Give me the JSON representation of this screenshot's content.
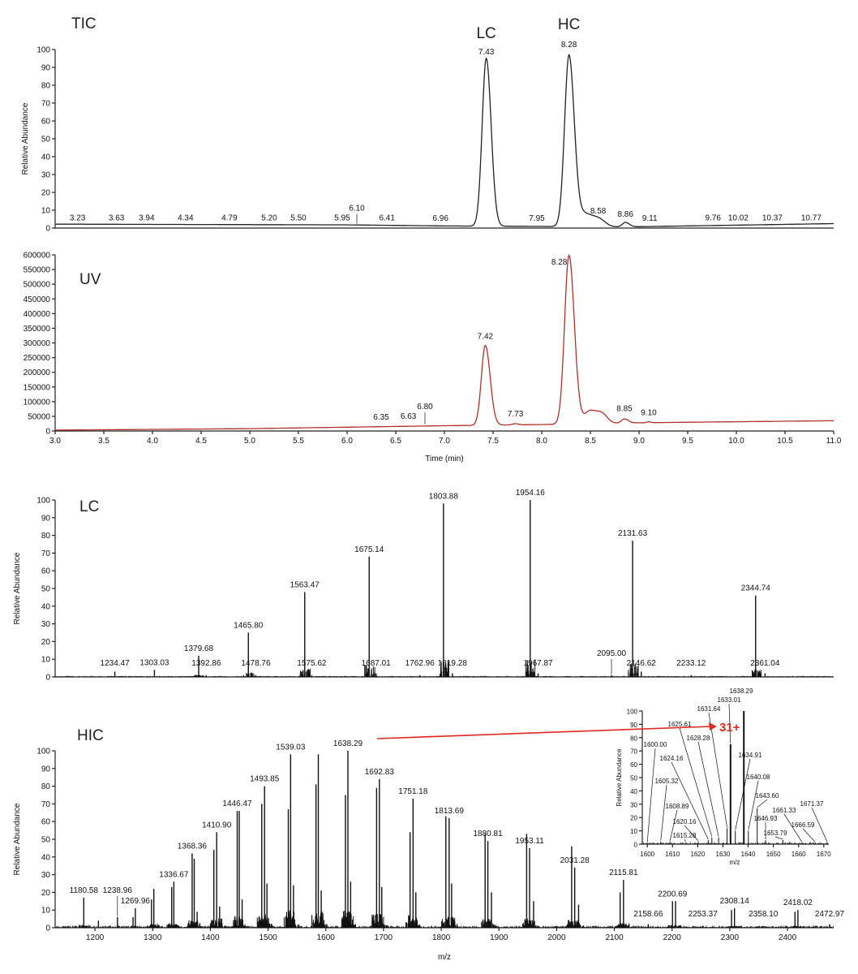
{
  "colors": {
    "tic_trace": "#222222",
    "uv_trace": "#b0302a",
    "spectrum": "#111111",
    "annotation": "#e0281e"
  },
  "chart_data": [
    {
      "id": "tic",
      "type": "line",
      "panel_label": "TIC",
      "peak_names": [
        {
          "text": "LC",
          "rt": 7.43
        },
        {
          "text": "HC",
          "rt": 8.28
        }
      ],
      "ylabel": "Relative Abundance",
      "xlim": [
        3.0,
        11.0
      ],
      "ylim": [
        0,
        100
      ],
      "yticks": [
        0,
        10,
        20,
        30,
        40,
        50,
        60,
        70,
        80,
        90,
        100
      ],
      "peaks": [
        {
          "rt": 3.23,
          "value": 2,
          "label": "3.23"
        },
        {
          "rt": 3.63,
          "value": 2,
          "label": "3.63"
        },
        {
          "rt": 3.94,
          "value": 2,
          "label": "3.94"
        },
        {
          "rt": 4.34,
          "value": 2,
          "label": "4.34"
        },
        {
          "rt": 4.79,
          "value": 2,
          "label": "4.79"
        },
        {
          "rt": 5.2,
          "value": 2,
          "label": "5.20"
        },
        {
          "rt": 5.5,
          "value": 2,
          "label": "5.50"
        },
        {
          "rt": 5.95,
          "value": 2,
          "label": "5.95"
        },
        {
          "rt": 6.1,
          "value": 2,
          "label": "6.10"
        },
        {
          "rt": 6.41,
          "value": 2,
          "label": "6.41"
        },
        {
          "rt": 6.96,
          "value": 1,
          "label": "6.96"
        },
        {
          "rt": 7.43,
          "value": 95,
          "label": "7.43"
        },
        {
          "rt": 7.95,
          "value": 1,
          "label": "7.95"
        },
        {
          "rt": 8.28,
          "value": 99,
          "label": "8.28"
        },
        {
          "rt": 8.58,
          "value": 6,
          "label": "8.58"
        },
        {
          "rt": 8.86,
          "value": 4,
          "label": "8.86"
        },
        {
          "rt": 9.11,
          "value": 1,
          "label": "9.11"
        },
        {
          "rt": 9.76,
          "value": 2,
          "label": "9.76"
        },
        {
          "rt": 10.02,
          "value": 2,
          "label": "10.02"
        },
        {
          "rt": 10.37,
          "value": 2,
          "label": "10.37"
        },
        {
          "rt": 10.77,
          "value": 2,
          "label": "10.77"
        }
      ]
    },
    {
      "id": "uv",
      "type": "line",
      "panel_label": "UV",
      "xlabel": "Time (min)",
      "xlim": [
        3.0,
        11.0
      ],
      "ylim": [
        0,
        600000
      ],
      "xticks": [
        "3.0",
        "3.5",
        "4.0",
        "4.5",
        "5.0",
        "5.5",
        "6.0",
        "6.5",
        "7.0",
        "7.5",
        "8.0",
        "8.5",
        "9.0",
        "9.5",
        "10.0",
        "10.5",
        "11.0"
      ],
      "yticks": [
        0,
        50000,
        100000,
        150000,
        200000,
        250000,
        300000,
        350000,
        400000,
        450000,
        500000,
        550000,
        600000
      ],
      "peaks": [
        {
          "rt": 6.35,
          "value": 17000,
          "label": "6.35"
        },
        {
          "rt": 6.63,
          "value": 19000,
          "label": "6.63"
        },
        {
          "rt": 6.8,
          "value": 20000,
          "label": "6.80"
        },
        {
          "rt": 7.42,
          "value": 292000,
          "label": "7.42"
        },
        {
          "rt": 7.73,
          "value": 27000,
          "label": "7.73"
        },
        {
          "rt": 8.28,
          "value": 600000,
          "label": "8.28"
        },
        {
          "rt": 8.85,
          "value": 45000,
          "label": "8.85"
        },
        {
          "rt": 9.1,
          "value": 32000,
          "label": "9.10"
        }
      ]
    },
    {
      "id": "lc_spectrum",
      "type": "bar",
      "panel_label": "LC",
      "ylabel": "Relative Abundance",
      "xlim": [
        1131,
        2480
      ],
      "ylim": [
        0,
        100
      ],
      "yticks": [
        0,
        10,
        20,
        30,
        40,
        50,
        60,
        70,
        80,
        90,
        100
      ],
      "peaks": [
        {
          "mz": 1234.47,
          "value": 3,
          "label": "1234.47"
        },
        {
          "mz": 1303.03,
          "value": 4,
          "label": "1303.03"
        },
        {
          "mz": 1379.68,
          "value": 12,
          "label": "1379.68"
        },
        {
          "mz": 1392.86,
          "value": 1,
          "label": "1392.86"
        },
        {
          "mz": 1465.8,
          "value": 25,
          "label": "1465.80"
        },
        {
          "mz": 1478.76,
          "value": 1,
          "label": "1478.76"
        },
        {
          "mz": 1563.47,
          "value": 48,
          "label": "1563.47"
        },
        {
          "mz": 1575.62,
          "value": 1,
          "label": "1575.62"
        },
        {
          "mz": 1675.14,
          "value": 68,
          "label": "1675.14"
        },
        {
          "mz": 1687.01,
          "value": 2,
          "label": "1687.01"
        },
        {
          "mz": 1762.96,
          "value": 1,
          "label": "1762.96"
        },
        {
          "mz": 1803.88,
          "value": 98,
          "label": "1803.88"
        },
        {
          "mz": 1819.28,
          "value": 2,
          "label": "1819.28"
        },
        {
          "mz": 1954.16,
          "value": 100,
          "label": "1954.16"
        },
        {
          "mz": 1967.87,
          "value": 2,
          "label": "1967.87"
        },
        {
          "mz": 2095.0,
          "value": 1,
          "label": "2095.00"
        },
        {
          "mz": 2131.63,
          "value": 77,
          "label": "2131.63"
        },
        {
          "mz": 2146.62,
          "value": 3,
          "label": "2146.62"
        },
        {
          "mz": 2233.12,
          "value": 1,
          "label": "2233.12"
        },
        {
          "mz": 2344.74,
          "value": 46,
          "label": "2344.74"
        },
        {
          "mz": 2361.04,
          "value": 2,
          "label": "2361.04"
        }
      ]
    },
    {
      "id": "hc_spectrum",
      "type": "bar",
      "panel_label": "HIC",
      "xlabel": "m/z",
      "ylabel": "Relative Abundance",
      "xlim": [
        1131,
        2480
      ],
      "ylim": [
        0,
        100
      ],
      "xticks": [
        1200,
        1300,
        1400,
        1500,
        1600,
        1700,
        1800,
        1900,
        2000,
        2100,
        2200,
        2300,
        2400
      ],
      "yticks": [
        0,
        10,
        20,
        30,
        40,
        50,
        60,
        70,
        80,
        90,
        100
      ],
      "peaks": [
        {
          "mz": 1180.58,
          "value": 17,
          "label": "1180.58"
        },
        {
          "mz": 1238.96,
          "value": 6,
          "label": "1238.96"
        },
        {
          "mz": 1269.96,
          "value": 11,
          "label": "1269.96"
        },
        {
          "mz": 1336.67,
          "value": 26,
          "label": "1336.67"
        },
        {
          "mz": 1368.36,
          "value": 42,
          "label": "1368.36"
        },
        {
          "mz": 1410.9,
          "value": 54,
          "label": "1410.90"
        },
        {
          "mz": 1446.47,
          "value": 66,
          "label": "1446.47"
        },
        {
          "mz": 1493.85,
          "value": 80,
          "label": "1493.85"
        },
        {
          "mz": 1539.03,
          "value": 98,
          "label": "1539.03"
        },
        {
          "mz": 1638.29,
          "value": 100,
          "label": "1638.29"
        },
        {
          "mz": 1692.83,
          "value": 84,
          "label": "1692.83"
        },
        {
          "mz": 1751.18,
          "value": 73,
          "label": "1751.18"
        },
        {
          "mz": 1813.69,
          "value": 62,
          "label": "1813.69"
        },
        {
          "mz": 1880.81,
          "value": 49,
          "label": "1880.81"
        },
        {
          "mz": 1953.11,
          "value": 45,
          "label": "1953.11"
        },
        {
          "mz": 2031.28,
          "value": 34,
          "label": "2031.28"
        },
        {
          "mz": 2115.81,
          "value": 27,
          "label": "2115.81"
        },
        {
          "mz": 2158.66,
          "value": 2,
          "label": "2158.66"
        },
        {
          "mz": 2200.69,
          "value": 15,
          "label": "2200.69"
        },
        {
          "mz": 2253.37,
          "value": 1,
          "label": "2253.37"
        },
        {
          "mz": 2308.14,
          "value": 11,
          "label": "2308.14"
        },
        {
          "mz": 2358.1,
          "value": 1,
          "label": "2358.10"
        },
        {
          "mz": 2418.02,
          "value": 10,
          "label": "2418.02"
        },
        {
          "mz": 2472.97,
          "value": 2,
          "label": "2472.97"
        }
      ],
      "unlabeled_peaks": [
        {
          "mz": 1206,
          "value": 4
        },
        {
          "mz": 1266,
          "value": 6
        },
        {
          "mz": 1298,
          "value": 16
        },
        {
          "mz": 1302,
          "value": 22
        },
        {
          "mz": 1333,
          "value": 23
        },
        {
          "mz": 1372,
          "value": 39
        },
        {
          "mz": 1377,
          "value": 9
        },
        {
          "mz": 1406,
          "value": 44
        },
        {
          "mz": 1416,
          "value": 12
        },
        {
          "mz": 1450,
          "value": 66
        },
        {
          "mz": 1455,
          "value": 16
        },
        {
          "mz": 1489,
          "value": 70
        },
        {
          "mz": 1498,
          "value": 25
        },
        {
          "mz": 1535,
          "value": 67
        },
        {
          "mz": 1544,
          "value": 24
        },
        {
          "mz": 1583,
          "value": 81
        },
        {
          "mz": 1587,
          "value": 98
        },
        {
          "mz": 1592,
          "value": 21
        },
        {
          "mz": 1634,
          "value": 75
        },
        {
          "mz": 1643,
          "value": 26
        },
        {
          "mz": 1688,
          "value": 79
        },
        {
          "mz": 1697,
          "value": 23
        },
        {
          "mz": 1746,
          "value": 54
        },
        {
          "mz": 1756,
          "value": 20
        },
        {
          "mz": 1808,
          "value": 63
        },
        {
          "mz": 1818,
          "value": 25
        },
        {
          "mz": 1876,
          "value": 53
        },
        {
          "mz": 1887,
          "value": 20
        },
        {
          "mz": 1948,
          "value": 53
        },
        {
          "mz": 1960,
          "value": 15
        },
        {
          "mz": 2026,
          "value": 46
        },
        {
          "mz": 2038,
          "value": 13
        },
        {
          "mz": 2110,
          "value": 20
        },
        {
          "mz": 2206,
          "value": 15
        },
        {
          "mz": 2303,
          "value": 10
        },
        {
          "mz": 2413,
          "value": 9
        }
      ],
      "annotation": {
        "text": "31+",
        "from_peak": "1638.29"
      }
    },
    {
      "id": "hc_inset",
      "type": "bar",
      "xlabel": "m/z",
      "ylabel": "Relative Abundance",
      "xlim": [
        1598,
        1672
      ],
      "ylim": [
        0,
        100
      ],
      "xticks": [
        1600,
        1610,
        1620,
        1630,
        1640,
        1650,
        1660,
        1670
      ],
      "yticks": [
        0,
        10,
        20,
        30,
        40,
        50,
        60,
        70,
        80,
        90,
        100
      ],
      "peaks": [
        {
          "mz": 1600.0,
          "value": 1,
          "label": "1600.00"
        },
        {
          "mz": 1605.32,
          "value": 2,
          "label": "1605.32"
        },
        {
          "mz": 1608.89,
          "value": 1,
          "label": "1608.89"
        },
        {
          "mz": 1615.28,
          "value": 1,
          "label": "1615.28"
        },
        {
          "mz": 1620.16,
          "value": 2,
          "label": "1620.16"
        },
        {
          "mz": 1624.16,
          "value": 3,
          "label": "1624.16"
        },
        {
          "mz": 1625.61,
          "value": 5,
          "label": "1625.61"
        },
        {
          "mz": 1628.28,
          "value": 5,
          "label": "1628.28"
        },
        {
          "mz": 1631.64,
          "value": 12,
          "label": "1631.64"
        },
        {
          "mz": 1633.01,
          "value": 75,
          "label": "1633.01"
        },
        {
          "mz": 1634.91,
          "value": 10,
          "label": "1634.91"
        },
        {
          "mz": 1638.29,
          "value": 100,
          "label": "1638.29"
        },
        {
          "mz": 1640.08,
          "value": 10,
          "label": "1640.08"
        },
        {
          "mz": 1643.6,
          "value": 27,
          "label": "1643.60"
        },
        {
          "mz": 1646.93,
          "value": 3,
          "label": "1646.93"
        },
        {
          "mz": 1653.79,
          "value": 3,
          "label": "1653.79"
        },
        {
          "mz": 1661.33,
          "value": 1,
          "label": "1661.33"
        },
        {
          "mz": 1666.59,
          "value": 1,
          "label": "1666.59"
        },
        {
          "mz": 1671.37,
          "value": 1,
          "label": "1671.37"
        }
      ]
    }
  ]
}
